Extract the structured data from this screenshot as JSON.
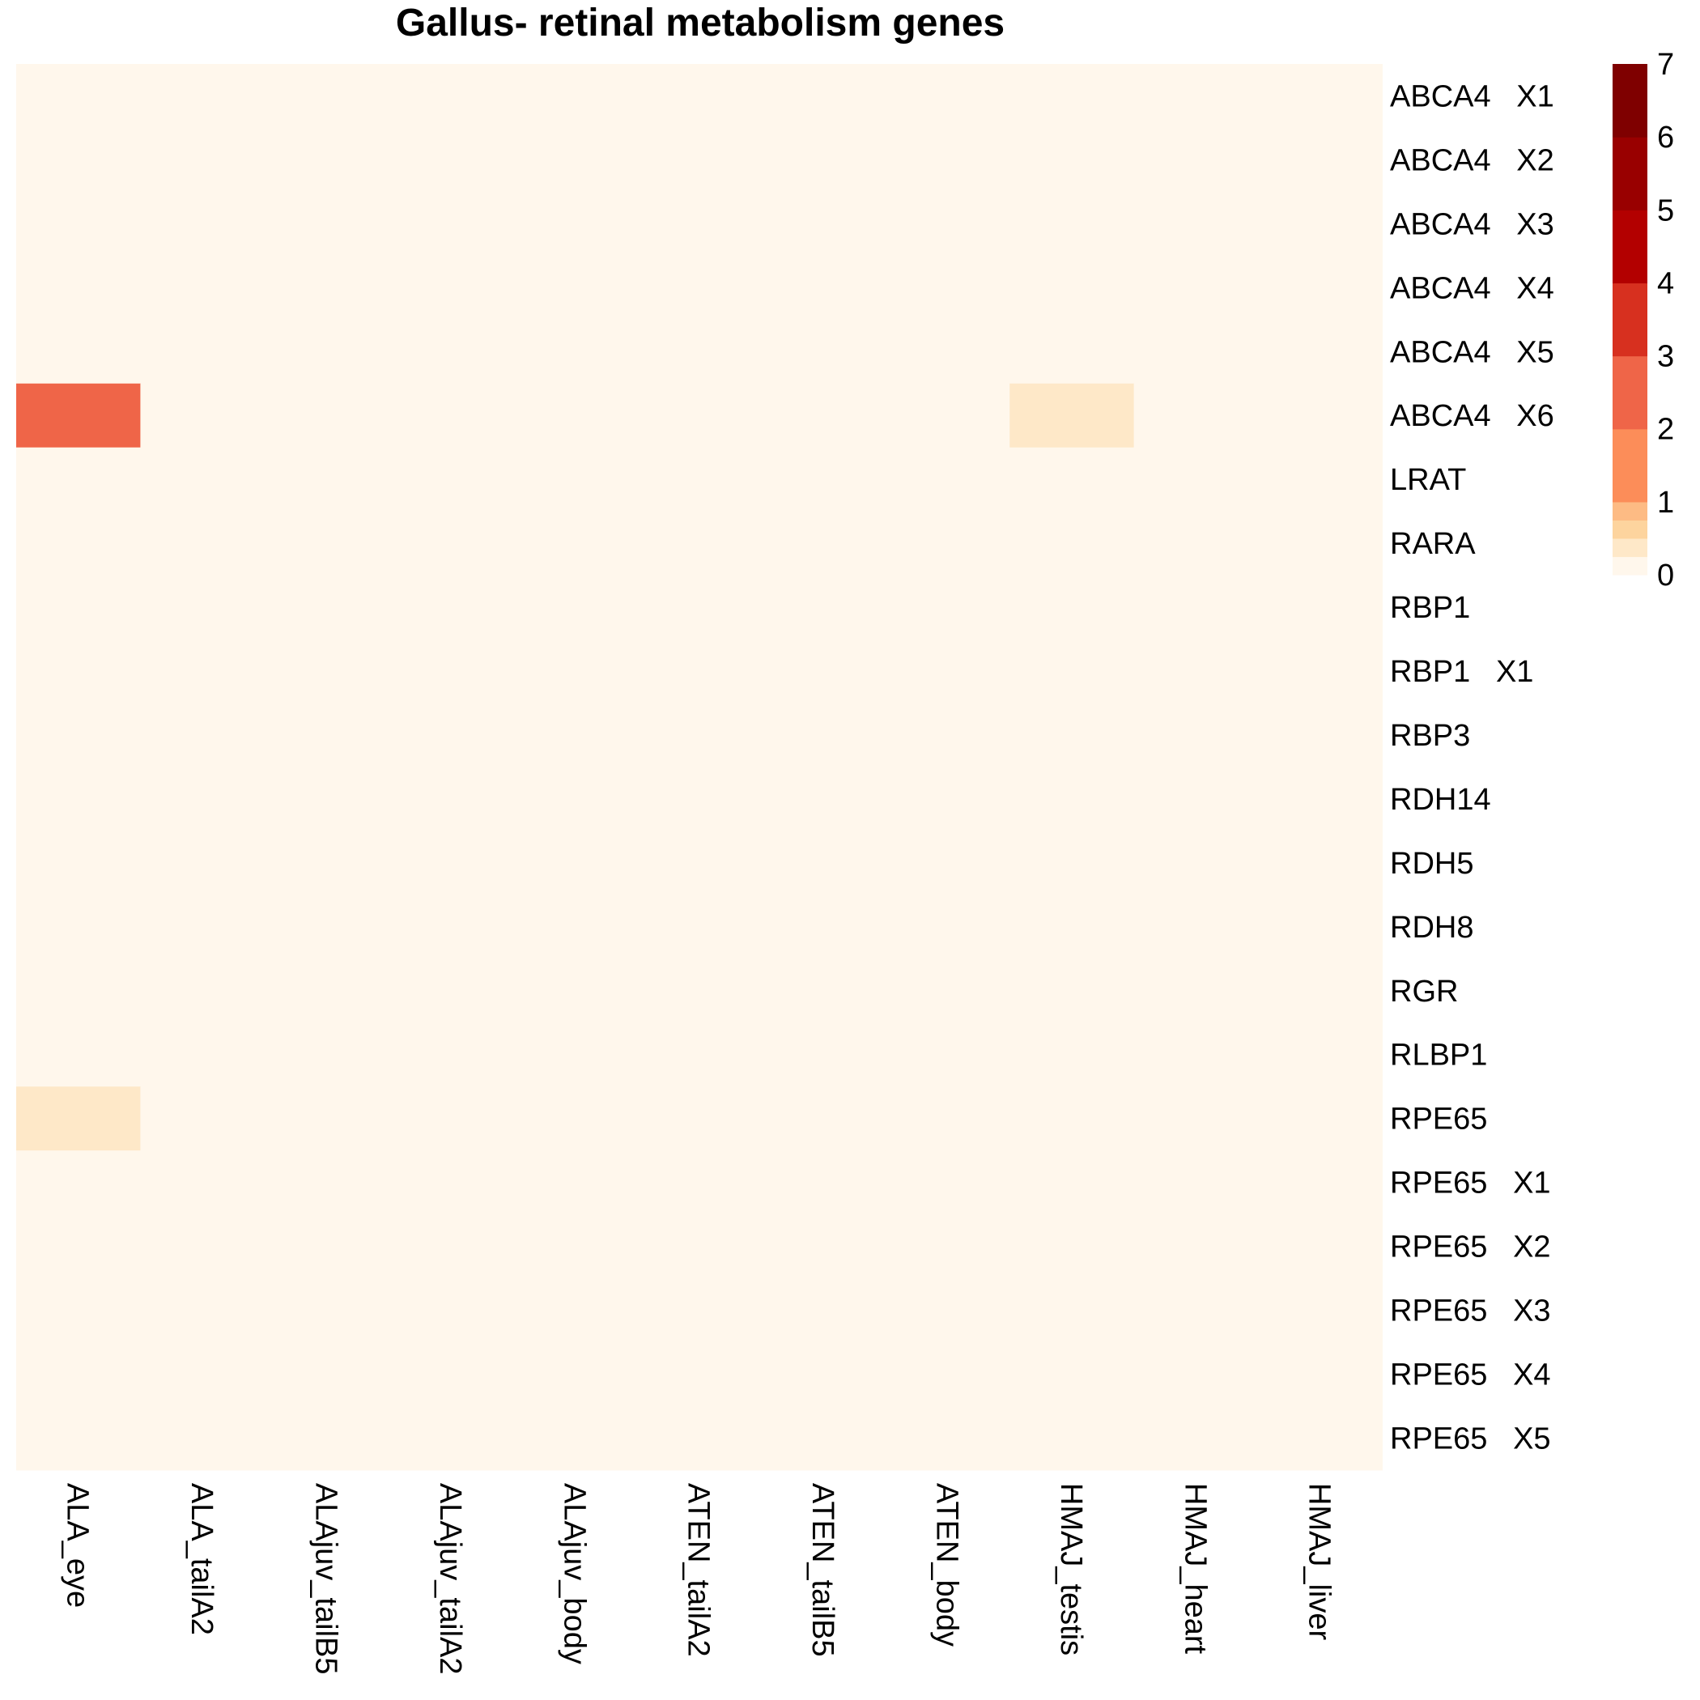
{
  "chart_data": {
    "type": "heatmap",
    "title": "Gallus- retinal metabolism genes",
    "columns": [
      "ALA_eye",
      "ALA_tailA2",
      "ALAjuv_tailB5",
      "ALAjuv_tailA2",
      "ALAjuv_body",
      "ATEN_tailA2",
      "ATEN_tailB5",
      "ATEN_body",
      "HMAJ_testis",
      "HMAJ_heart",
      "HMAJ_liver"
    ],
    "rows": [
      "ABCA4   X1",
      "ABCA4   X2",
      "ABCA4   X3",
      "ABCA4   X4",
      "ABCA4   X5",
      "ABCA4   X6",
      "LRAT",
      "RARA",
      "RBP1",
      "RBP1   X1",
      "RBP3",
      "RDH14",
      "RDH5",
      "RDH8",
      "RGR",
      "RLBP1",
      "RPE65",
      "RPE65   X1",
      "RPE65   X2",
      "RPE65   X3",
      "RPE65   X4",
      "RPE65   X5"
    ],
    "values": [
      [
        0,
        0,
        0,
        0,
        0,
        0,
        0,
        0,
        0,
        0,
        0
      ],
      [
        0,
        0,
        0,
        0,
        0,
        0,
        0,
        0,
        0,
        0,
        0
      ],
      [
        0,
        0,
        0,
        0,
        0,
        0,
        0,
        0,
        0,
        0,
        0
      ],
      [
        0,
        0,
        0,
        0,
        0,
        0,
        0,
        0,
        0,
        0,
        0
      ],
      [
        0,
        0,
        0,
        0,
        0,
        0,
        0,
        0,
        0,
        0,
        0
      ],
      [
        2.5,
        0,
        0,
        0,
        0,
        0,
        0,
        0,
        0.3,
        0,
        0
      ],
      [
        0,
        0,
        0,
        0,
        0,
        0,
        0,
        0,
        0,
        0,
        0
      ],
      [
        0,
        0,
        0,
        0,
        0,
        0,
        0,
        0,
        0,
        0,
        0
      ],
      [
        0,
        0,
        0,
        0,
        0,
        0,
        0,
        0,
        0,
        0,
        0
      ],
      [
        0,
        0,
        0,
        0,
        0,
        0,
        0,
        0,
        0,
        0,
        0
      ],
      [
        0,
        0,
        0,
        0,
        0,
        0,
        0,
        0,
        0,
        0,
        0
      ],
      [
        0,
        0,
        0,
        0,
        0,
        0,
        0,
        0,
        0,
        0,
        0
      ],
      [
        0,
        0,
        0,
        0,
        0,
        0,
        0,
        0,
        0,
        0,
        0
      ],
      [
        0,
        0,
        0,
        0,
        0,
        0,
        0,
        0,
        0,
        0,
        0
      ],
      [
        0,
        0,
        0,
        0,
        0,
        0,
        0,
        0,
        0,
        0,
        0
      ],
      [
        0,
        0,
        0,
        0,
        0,
        0,
        0,
        0,
        0,
        0,
        0
      ],
      [
        0.3,
        0,
        0,
        0,
        0,
        0,
        0,
        0,
        0,
        0,
        0
      ],
      [
        0,
        0,
        0,
        0,
        0,
        0,
        0,
        0,
        0,
        0,
        0
      ],
      [
        0,
        0,
        0,
        0,
        0,
        0,
        0,
        0,
        0,
        0,
        0
      ],
      [
        0,
        0,
        0,
        0,
        0,
        0,
        0,
        0,
        0,
        0,
        0
      ],
      [
        0,
        0,
        0,
        0,
        0,
        0,
        0,
        0,
        0,
        0,
        0
      ],
      [
        0,
        0,
        0,
        0,
        0,
        0,
        0,
        0,
        0,
        0,
        0
      ]
    ],
    "color_scale": {
      "range": [
        0,
        7
      ],
      "tick_labels": [
        "0",
        "1",
        "2",
        "3",
        "4",
        "5",
        "6",
        "7"
      ],
      "breaks": [
        0,
        0.25,
        0.5,
        0.75,
        1,
        2,
        3,
        4,
        5,
        6,
        7
      ],
      "colors": [
        "#FFF7EC",
        "#FEE8C8",
        "#FDD49E",
        "#FDBB84",
        "#FC8D59",
        "#EF6548",
        "#D7301F",
        "#B30000",
        "#990000",
        "#7F0000"
      ]
    },
    "legend_position": "top-right"
  }
}
